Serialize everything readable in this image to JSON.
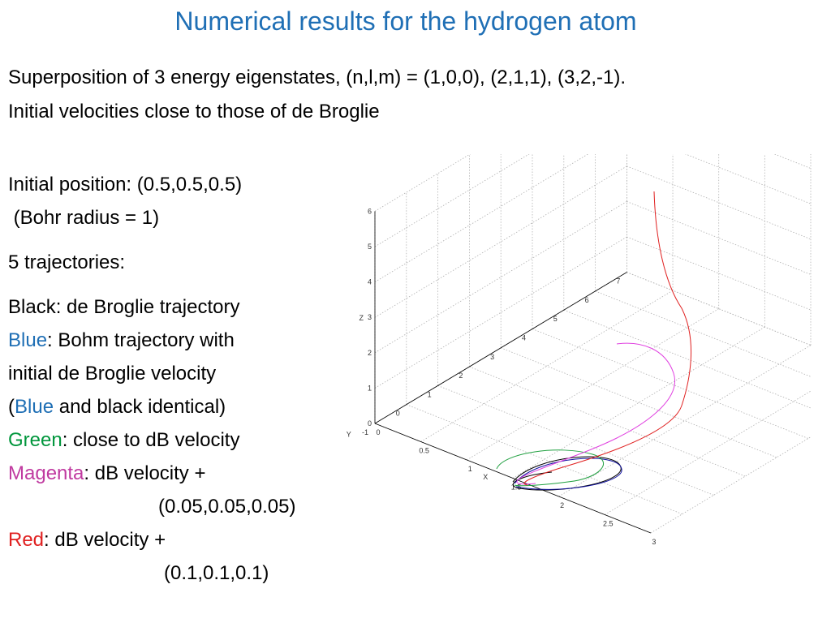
{
  "title": "Numerical results for the hydrogen atom",
  "subtitle": {
    "line1": "Superposition of 3 energy eigenstates, (n,l,m) = (1,0,0), (2,1,1), (3,2,-1).",
    "line2": "Initial velocities close to those of de Broglie"
  },
  "body": {
    "initial_position": "Initial position: (0.5,0.5,0.5)",
    "bohr_radius": " (Bohr radius = 1)",
    "trajectories": "5 trajectories:",
    "black": "Black: de Broglie trajectory",
    "blue_word": "Blue",
    "blue_rest": ": Bohm trajectory with",
    "blue_line2": "initial de Broglie velocity",
    "paren_open": "(",
    "blue_word2": "Blue",
    "identical": " and black identical)",
    "green_word": "Green",
    "green_rest": ": close to dB velocity",
    "magenta_word": "Magenta",
    "magenta_rest": ": dB velocity +",
    "magenta_vec": "(0.05,0.05,0.05)",
    "red_word": "Red",
    "red_rest": ": dB velocity +",
    "red_vec": "(0.1,0.1,0.1)"
  },
  "plot": {
    "z_ticks": [
      "0",
      "1",
      "2",
      "3",
      "4",
      "5",
      "6"
    ],
    "y_ticks": [
      "7",
      "6",
      "5",
      "4",
      "3",
      "2",
      "1",
      "0",
      "-1"
    ],
    "x_ticks": [
      "0",
      "0.5",
      "1",
      "1.5",
      "2",
      "2.5",
      "3"
    ],
    "z_label": "Z",
    "y_label": "Y",
    "x_label": "X",
    "colors": {
      "red": "#e02020",
      "magenta": "#e040e0",
      "green": "#20a040",
      "blue": "#1010a0",
      "black": "#000000"
    }
  }
}
